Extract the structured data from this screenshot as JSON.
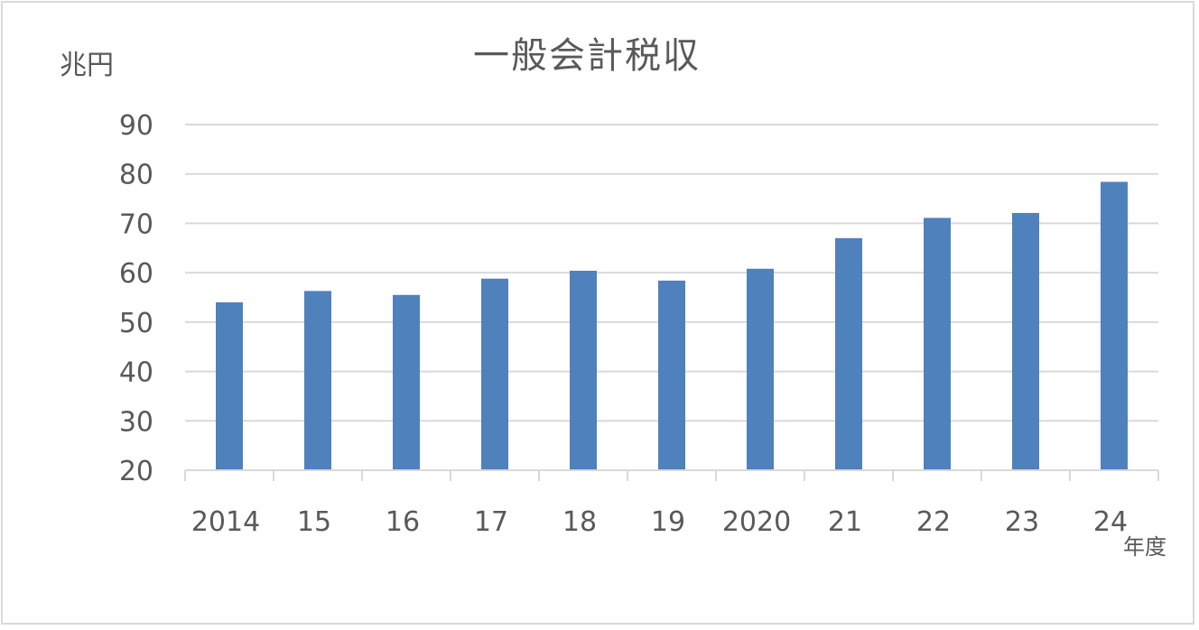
{
  "chart_data": {
    "type": "bar",
    "title": "一般会計税収",
    "ylabel": "兆円",
    "xlabel": "年度",
    "categories": [
      "2014",
      "15",
      "16",
      "17",
      "18",
      "19",
      "2020",
      "21",
      "22",
      "23",
      "24"
    ],
    "values": [
      54.0,
      56.3,
      55.5,
      58.8,
      60.4,
      58.4,
      60.8,
      67.0,
      71.1,
      72.1,
      78.4
    ],
    "ylim": [
      20,
      90
    ],
    "yticks": [
      "20",
      "30",
      "40",
      "50",
      "60",
      "70",
      "80",
      "90"
    ],
    "grid": true,
    "legend": "none",
    "bar_color": "#4f81bd"
  }
}
